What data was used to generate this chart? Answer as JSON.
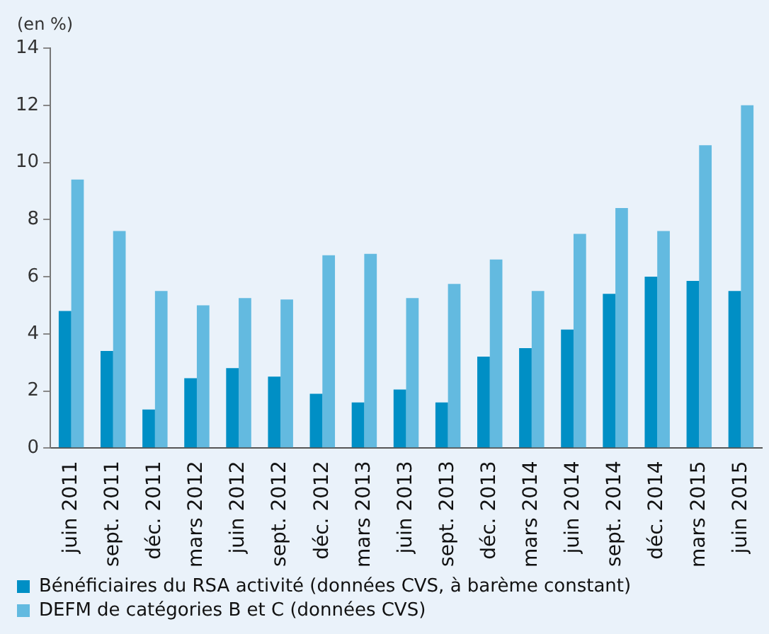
{
  "chart_data": {
    "type": "bar",
    "ylabel": "(en %)",
    "categories": [
      "juin 2011",
      "sept. 2011",
      "déc. 2011",
      "mars 2012",
      "juin 2012",
      "sept. 2012",
      "déc. 2012",
      "mars 2013",
      "juin 2013",
      "sept. 2013",
      "déc. 2013",
      "mars 2014",
      "juin 2014",
      "sept. 2014",
      "déc. 2014",
      "mars 2015",
      "juin 2015"
    ],
    "series": [
      {
        "name": "Bénéficiaires du RSA activité (données CVS, à barème constant)",
        "color": "#008fc5",
        "values": [
          4.8,
          3.4,
          1.35,
          2.45,
          2.8,
          2.5,
          1.9,
          1.6,
          2.05,
          1.6,
          3.2,
          3.5,
          4.15,
          5.4,
          6.0,
          5.85,
          5.5
        ]
      },
      {
        "name": "DEFM de catégories B et C (données CVS)",
        "color": "#63bae0",
        "values": [
          9.4,
          7.6,
          5.5,
          5.0,
          5.25,
          5.2,
          6.75,
          6.8,
          5.25,
          5.75,
          6.6,
          5.5,
          7.5,
          8.4,
          7.6,
          10.6,
          12.0
        ]
      }
    ],
    "ylim": [
      0,
      14
    ],
    "yticks": [
      0,
      2,
      4,
      6,
      8,
      10,
      12,
      14
    ],
    "grid": false,
    "legend": "bottom"
  }
}
